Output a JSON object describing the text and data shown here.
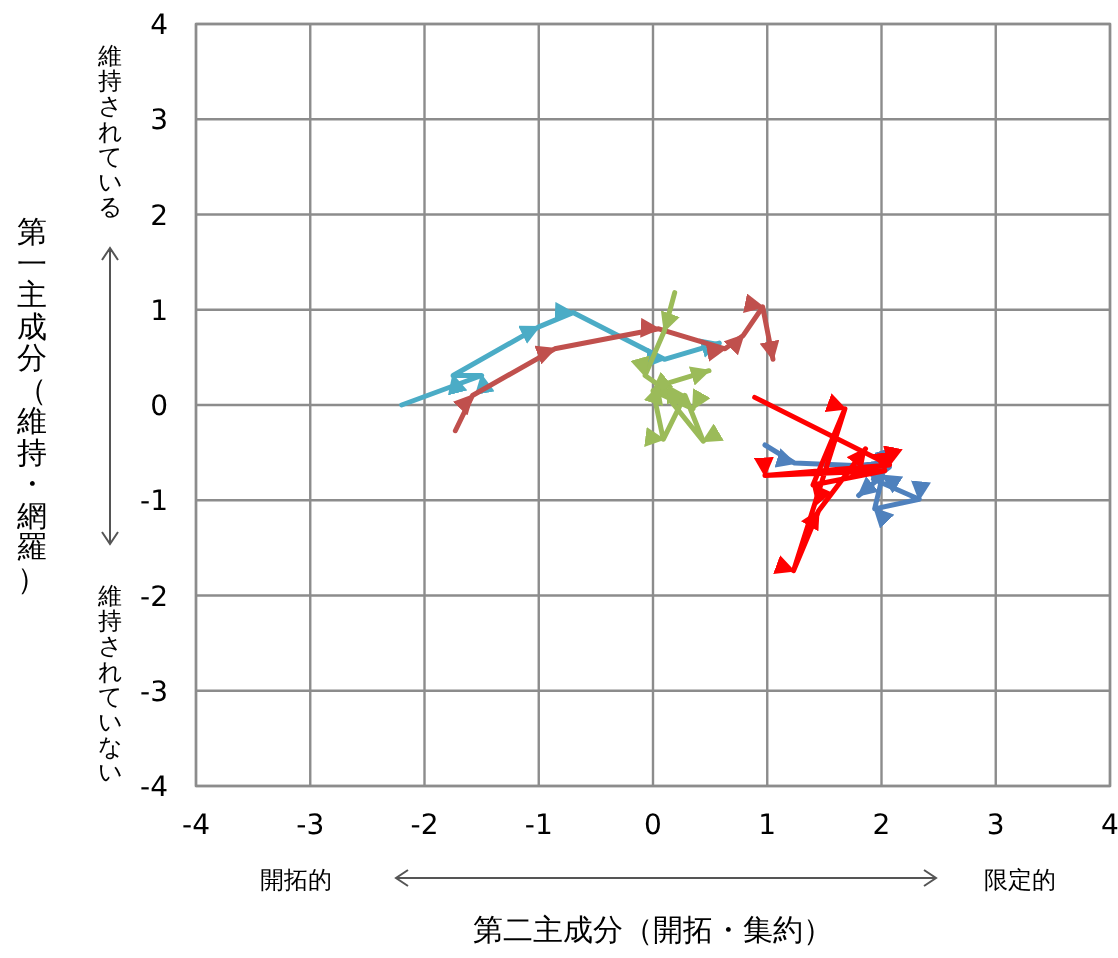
{
  "chart_data": {
    "type": "line",
    "xlabel": "第二主成分（開拓・集約）",
    "ylabel": "第一主成分（維持・網羅）",
    "xlim": [
      -4,
      4
    ],
    "ylim": [
      -4,
      4
    ],
    "xticks": [
      -4,
      -3,
      -2,
      -1,
      0,
      1,
      2,
      3,
      4
    ],
    "yticks": [
      -4,
      -3,
      -2,
      -1,
      0,
      1,
      2,
      3,
      4
    ],
    "grid": true,
    "annotations": [
      "維持されている",
      "維持されていない",
      "開拓的",
      "限定的"
    ],
    "series": [
      {
        "color": "#4bacc6",
        "x": [
          -2.2,
          -1.5,
          -1.75,
          -1.0,
          -0.7,
          0.1,
          0.58
        ],
        "values": [
          0.0,
          0.31,
          0.31,
          0.82,
          0.97,
          0.48,
          0.65
        ]
      },
      {
        "color": "#c0504d",
        "x": [
          -1.73,
          -1.58,
          -0.86,
          0.05,
          0.63,
          0.79,
          0.96,
          1.05
        ],
        "values": [
          -0.27,
          0.1,
          0.59,
          0.8,
          0.59,
          0.73,
          1.03,
          0.48
        ]
      },
      {
        "color": "#9bbb59",
        "x": [
          0.19,
          0.1,
          -0.07,
          0.35,
          0.0,
          0.09,
          0.28,
          0.44,
          0.05,
          0.49
        ],
        "values": [
          1.18,
          0.78,
          0.31,
          -0.04,
          0.15,
          -0.36,
          0.1,
          -0.38,
          0.2,
          0.36
        ]
      },
      {
        "color": "#4f81bd",
        "x": [
          0.98,
          1.24,
          2.07,
          1.93,
          2.33,
          1.94,
          2.01,
          1.8
        ],
        "values": [
          -0.42,
          -0.61,
          -0.65,
          -0.78,
          -0.99,
          -1.09,
          -0.74,
          -0.95
        ]
      },
      {
        "color": "#ff0000",
        "x": [
          0.89,
          2.07,
          0.98,
          2.03,
          1.4,
          1.68,
          1.23,
          1.45,
          1.86
        ],
        "values": [
          0.08,
          -0.63,
          -0.74,
          -0.69,
          -0.84,
          -0.04,
          -1.74,
          -1.11,
          -0.46
        ]
      }
    ]
  }
}
